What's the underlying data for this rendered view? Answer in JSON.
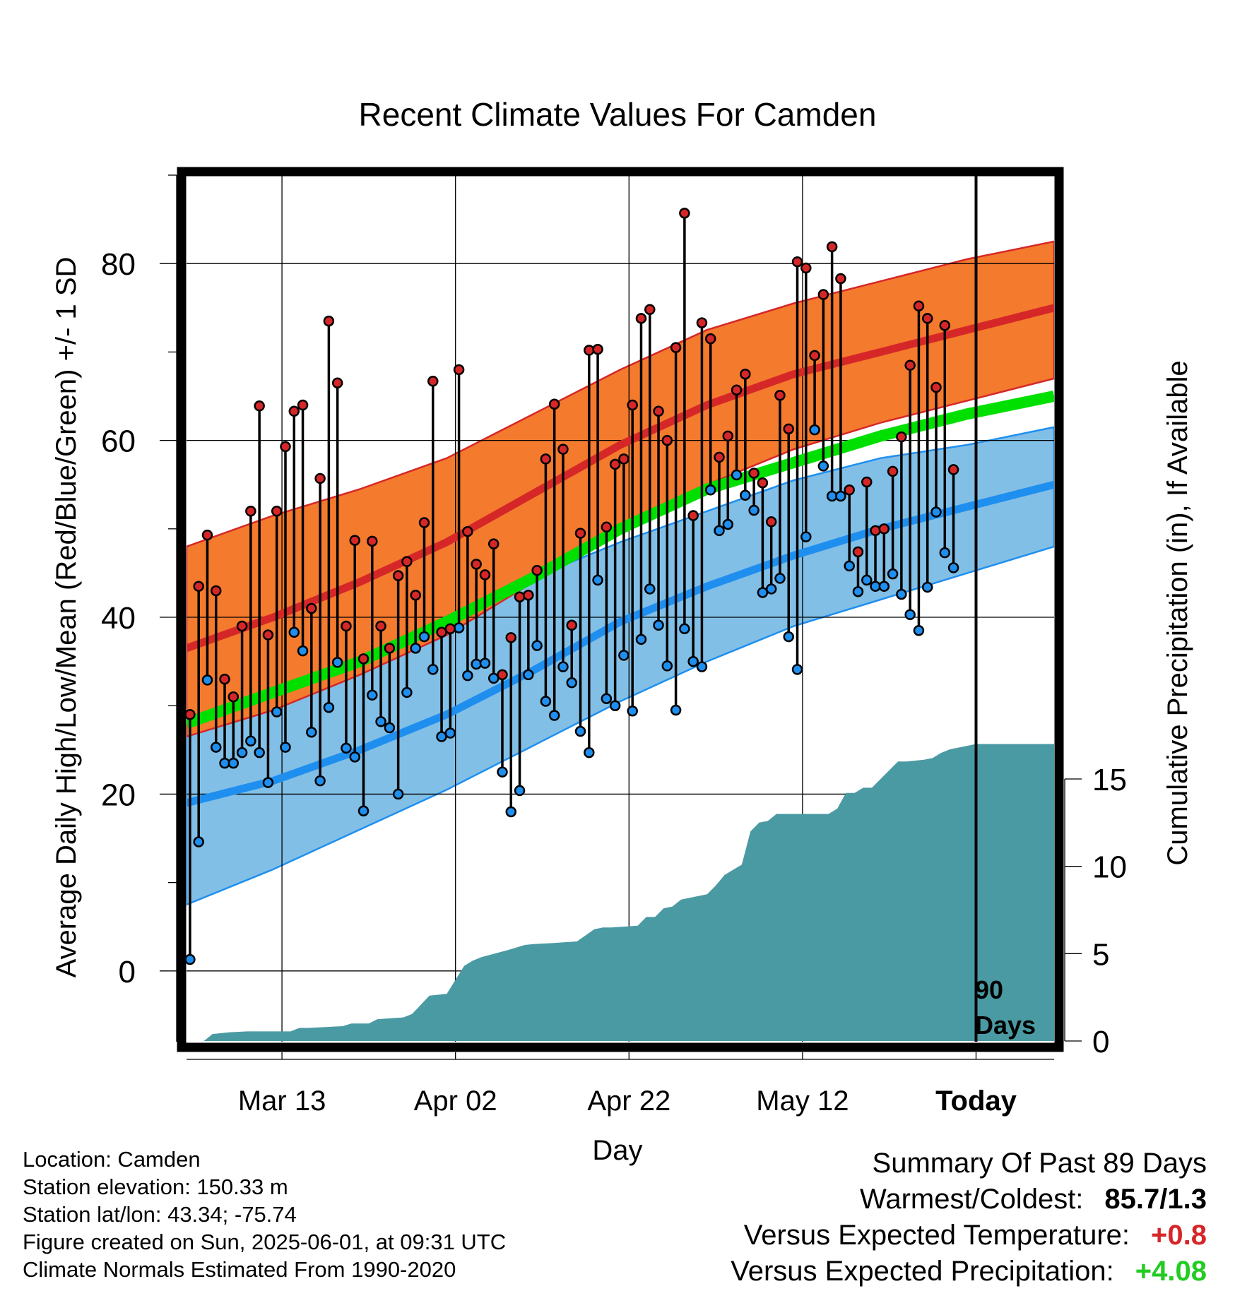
{
  "chart_data": {
    "type": "line",
    "title": "Recent Climate Values For Camden",
    "xlabel": "Day",
    "ylabel": "Average Daily High/Low/Mean (Red/Blue/Green) +/- 1 SD",
    "y2label": "Cumulative Precipitation (in), If Available",
    "x_ticks": [
      {
        "day": 11,
        "label": "Mar 13"
      },
      {
        "day": 31,
        "label": "Apr 02"
      },
      {
        "day": 51,
        "label": "Apr 22"
      },
      {
        "day": 71,
        "label": "May 12"
      },
      {
        "day": 91,
        "label": "Today"
      }
    ],
    "xlim": [
      0,
      100
    ],
    "ylim": [
      -8,
      90
    ],
    "y_ticks": [
      "0",
      "20",
      "40",
      "60",
      "80"
    ],
    "y2lim": [
      0,
      30
    ],
    "y2_ticks": [
      "0",
      "5",
      "10",
      "15"
    ],
    "today_label": [
      "90",
      "Days"
    ],
    "normals": {
      "days": [
        0,
        10,
        20,
        30,
        40,
        50,
        60,
        70,
        80,
        90,
        100
      ],
      "high_mean": [
        36.5,
        40.0,
        44.0,
        48.5,
        54.0,
        59.5,
        64.0,
        67.5,
        70.0,
        72.5,
        75.0
      ],
      "high_upper": [
        48.0,
        51.5,
        54.5,
        58.0,
        63.0,
        68.0,
        72.5,
        75.5,
        78.0,
        80.5,
        82.5
      ],
      "high_lower": [
        26.5,
        29.5,
        33.5,
        38.0,
        44.0,
        50.0,
        55.0,
        59.0,
        62.0,
        64.5,
        67.0
      ],
      "mean": [
        28.0,
        31.5,
        35.0,
        39.5,
        44.5,
        50.0,
        54.5,
        57.5,
        60.5,
        63.0,
        65.0
      ],
      "low_mean": [
        19.0,
        21.5,
        25.0,
        29.0,
        34.0,
        39.5,
        43.5,
        47.0,
        50.0,
        52.5,
        55.0
      ],
      "low_upper": [
        31.0,
        33.0,
        37.5,
        40.5,
        44.5,
        48.5,
        52.0,
        55.5,
        58.0,
        59.5,
        61.5
      ],
      "low_lower": [
        7.5,
        11.5,
        16.0,
        20.5,
        25.5,
        30.5,
        35.0,
        39.0,
        42.0,
        45.0,
        48.0
      ]
    },
    "series": [
      {
        "name": "High",
        "color": "#d62728",
        "values": [
          29,
          43.5,
          49.3,
          43,
          33,
          31,
          39,
          52,
          63.9,
          38,
          52,
          59.3,
          63.3,
          64,
          41,
          55.7,
          73.5,
          66.5,
          39,
          48.7,
          35.3,
          48.6,
          39,
          36.5,
          44.7,
          46.3,
          42.5,
          50.7,
          66.7,
          38.3,
          38.7,
          68,
          49.7,
          46,
          44.8,
          48.3,
          33.5,
          37.7,
          42.3,
          42.5,
          45.3,
          57.9,
          64.1,
          59,
          39.1,
          49.5,
          70.2,
          70.3,
          50.2,
          57.3,
          57.9,
          64,
          73.8,
          74.8,
          63.3,
          60,
          70.5,
          85.7,
          51.5,
          73.3,
          71.5,
          58.1,
          60.5,
          65.7,
          67.5,
          56.3,
          55.2,
          50.8,
          65.1,
          61.3,
          80.2,
          79.5,
          69.6,
          76.5,
          81.9,
          78.3,
          54.4,
          47.4,
          55.3,
          49.8,
          50,
          56.5,
          60.4,
          68.5,
          75.2,
          73.8,
          66,
          73,
          56.7
        ]
      },
      {
        "name": "Low",
        "color": "#1f8fef",
        "values": [
          1.3,
          14.6,
          32.9,
          25.3,
          23.5,
          23.5,
          24.7,
          26,
          24.7,
          21.3,
          29.3,
          25.3,
          38.3,
          36.2,
          27,
          21.5,
          29.8,
          34.9,
          25.2,
          24.2,
          18.1,
          31.2,
          28.2,
          27.5,
          20,
          31.5,
          36.5,
          37.8,
          34.1,
          26.5,
          26.9,
          38.8,
          33.4,
          34.7,
          34.8,
          33.1,
          22.5,
          18,
          20.4,
          33.5,
          36.8,
          30.5,
          28.9,
          34.4,
          32.6,
          27.1,
          24.7,
          44.2,
          30.8,
          30,
          35.7,
          29.4,
          37.5,
          43.2,
          39.1,
          34.5,
          29.5,
          38.7,
          35,
          34.4,
          54.4,
          49.8,
          50.5,
          56.1,
          53.8,
          52.1,
          42.8,
          43.2,
          44.4,
          37.8,
          34.1,
          49.1,
          61.2,
          57.1,
          53.7,
          53.7,
          45.8,
          42.9,
          44.2,
          43.5,
          43.5,
          44.9,
          42.6,
          40.3,
          38.5,
          43.4,
          51.9,
          47.3,
          45.6
        ]
      }
    ],
    "precip_cumulative": {
      "days": [
        0,
        2,
        3,
        5,
        7,
        12,
        13,
        14,
        18,
        19,
        21,
        22,
        25,
        26,
        28,
        30,
        31,
        32,
        33,
        34,
        37,
        39,
        40,
        42,
        45,
        47,
        48,
        49,
        52,
        53,
        54,
        55,
        56,
        57,
        60,
        61,
        62,
        64,
        65,
        66,
        67,
        68,
        69,
        71,
        74,
        75,
        76,
        77,
        78,
        79,
        81,
        82,
        83,
        85,
        86,
        87,
        88,
        91,
        100
      ],
      "values": [
        0,
        0,
        0.4,
        0.5,
        0.55,
        0.55,
        0.75,
        0.75,
        0.85,
        1.0,
        1.0,
        1.25,
        1.35,
        1.55,
        2.6,
        2.7,
        3.5,
        4.3,
        4.6,
        4.8,
        5.2,
        5.5,
        5.55,
        5.6,
        5.7,
        6.4,
        6.5,
        6.5,
        6.6,
        7.1,
        7.1,
        7.6,
        7.7,
        8.1,
        8.4,
        8.9,
        9.5,
        10.1,
        12.0,
        12.5,
        12.6,
        13.0,
        13.0,
        13.0,
        13.0,
        13.3,
        14.2,
        14.2,
        14.5,
        14.5,
        15.5,
        16.0,
        16.0,
        16.1,
        16.2,
        16.5,
        16.7,
        17.0,
        17.0
      ]
    },
    "grid": true
  },
  "info": {
    "location": "Location: Camden",
    "elevation": "Station elevation: 150.33 m",
    "latlon": "Station lat/lon: 43.34; -75.74",
    "created": "Figure created on Sun, 2025-06-01, at 09:31 UTC",
    "normals": "Climate Normals Estimated From 1990-2020"
  },
  "summary": {
    "title": "Summary Of Past 89 Days",
    "warm_cold_label": "Warmest/Coldest:",
    "warm_cold_value": "85.7/1.3",
    "temp_label": "Versus Expected Temperature:",
    "temp_value": "+0.8",
    "temp_color": "#d62728",
    "precip_label": "Versus Expected Precipitation:",
    "precip_value": "+4.08",
    "precip_color": "#22cc22"
  },
  "colors": {
    "high_band": "#f47a2e",
    "high_line": "#d62728",
    "mean_line": "#00e000",
    "low_band": "#82bfe6",
    "low_line": "#1f8fef",
    "precip": "#4a9aa3"
  }
}
